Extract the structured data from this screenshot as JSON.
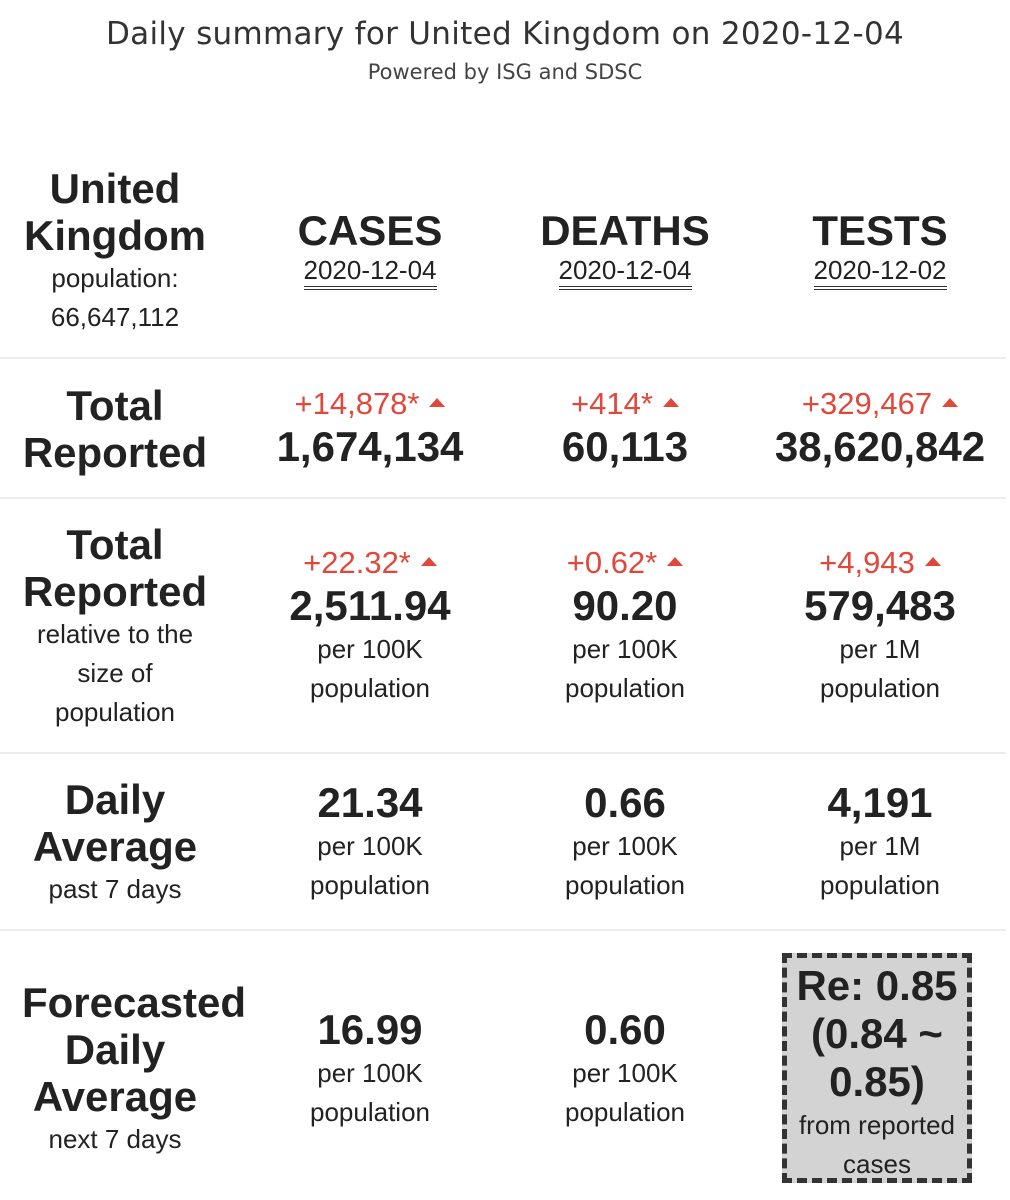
{
  "header": {
    "title": "Daily summary for United Kingdom on 2020-12-04",
    "subtitle": "Powered by ISG and SDSC"
  },
  "country": {
    "name_line1": "United",
    "name_line2": "Kingdom",
    "population_label": "population:",
    "population": "66,647,112"
  },
  "columns": {
    "cases": {
      "title": "CASES",
      "date": "2020-12-04"
    },
    "deaths": {
      "title": "DEATHS",
      "date": "2020-12-04"
    },
    "tests": {
      "title": "TESTS",
      "date": "2020-12-02"
    }
  },
  "rows": {
    "total_reported": {
      "label_line1": "Total",
      "label_line2": "Reported",
      "cases": {
        "delta": "+14,878*",
        "value": "1,674,134"
      },
      "deaths": {
        "delta": "+414*",
        "value": "60,113"
      },
      "tests": {
        "delta": "+329,467",
        "value": "38,620,842"
      }
    },
    "relative": {
      "label_line1": "Total",
      "label_line2": "Reported",
      "sub_line1": "relative to the",
      "sub_line2": "size of",
      "sub_line3": "population",
      "cases": {
        "delta": "+22.32*",
        "value": "2,511.94",
        "unit_line1": "per 100K",
        "unit_line2": "population"
      },
      "deaths": {
        "delta": "+0.62*",
        "value": "90.20",
        "unit_line1": "per 100K",
        "unit_line2": "population"
      },
      "tests": {
        "delta": "+4,943",
        "value": "579,483",
        "unit_line1": "per 1M",
        "unit_line2": "population"
      }
    },
    "daily_average": {
      "label_line1": "Daily",
      "label_line2": "Average",
      "sub": "past 7 days",
      "cases": {
        "value": "21.34",
        "unit_line1": "per 100K",
        "unit_line2": "population"
      },
      "deaths": {
        "value": "0.66",
        "unit_line1": "per 100K",
        "unit_line2": "population"
      },
      "tests": {
        "value": "4,191",
        "unit_line1": "per 1M",
        "unit_line2": "population"
      }
    },
    "forecast": {
      "label_line1": "Forecasted",
      "label_line2": "Daily",
      "label_line3": "Average",
      "sub": "next 7 days",
      "cases": {
        "value": "16.99",
        "unit_line1": "per 100K",
        "unit_line2": "population"
      },
      "deaths": {
        "value": "0.60",
        "unit_line1": "per 100K",
        "unit_line2": "population"
      },
      "re": {
        "line1": "Re: 0.85",
        "line2": "(0.84 ~",
        "line3": "0.85)",
        "sub_line1": "from reported",
        "sub_line2": "cases"
      }
    }
  },
  "colors": {
    "delta": "#e0483b",
    "re_box_bg": "#d3d3d3"
  },
  "icons": {
    "increase": "triangle-up-icon"
  }
}
